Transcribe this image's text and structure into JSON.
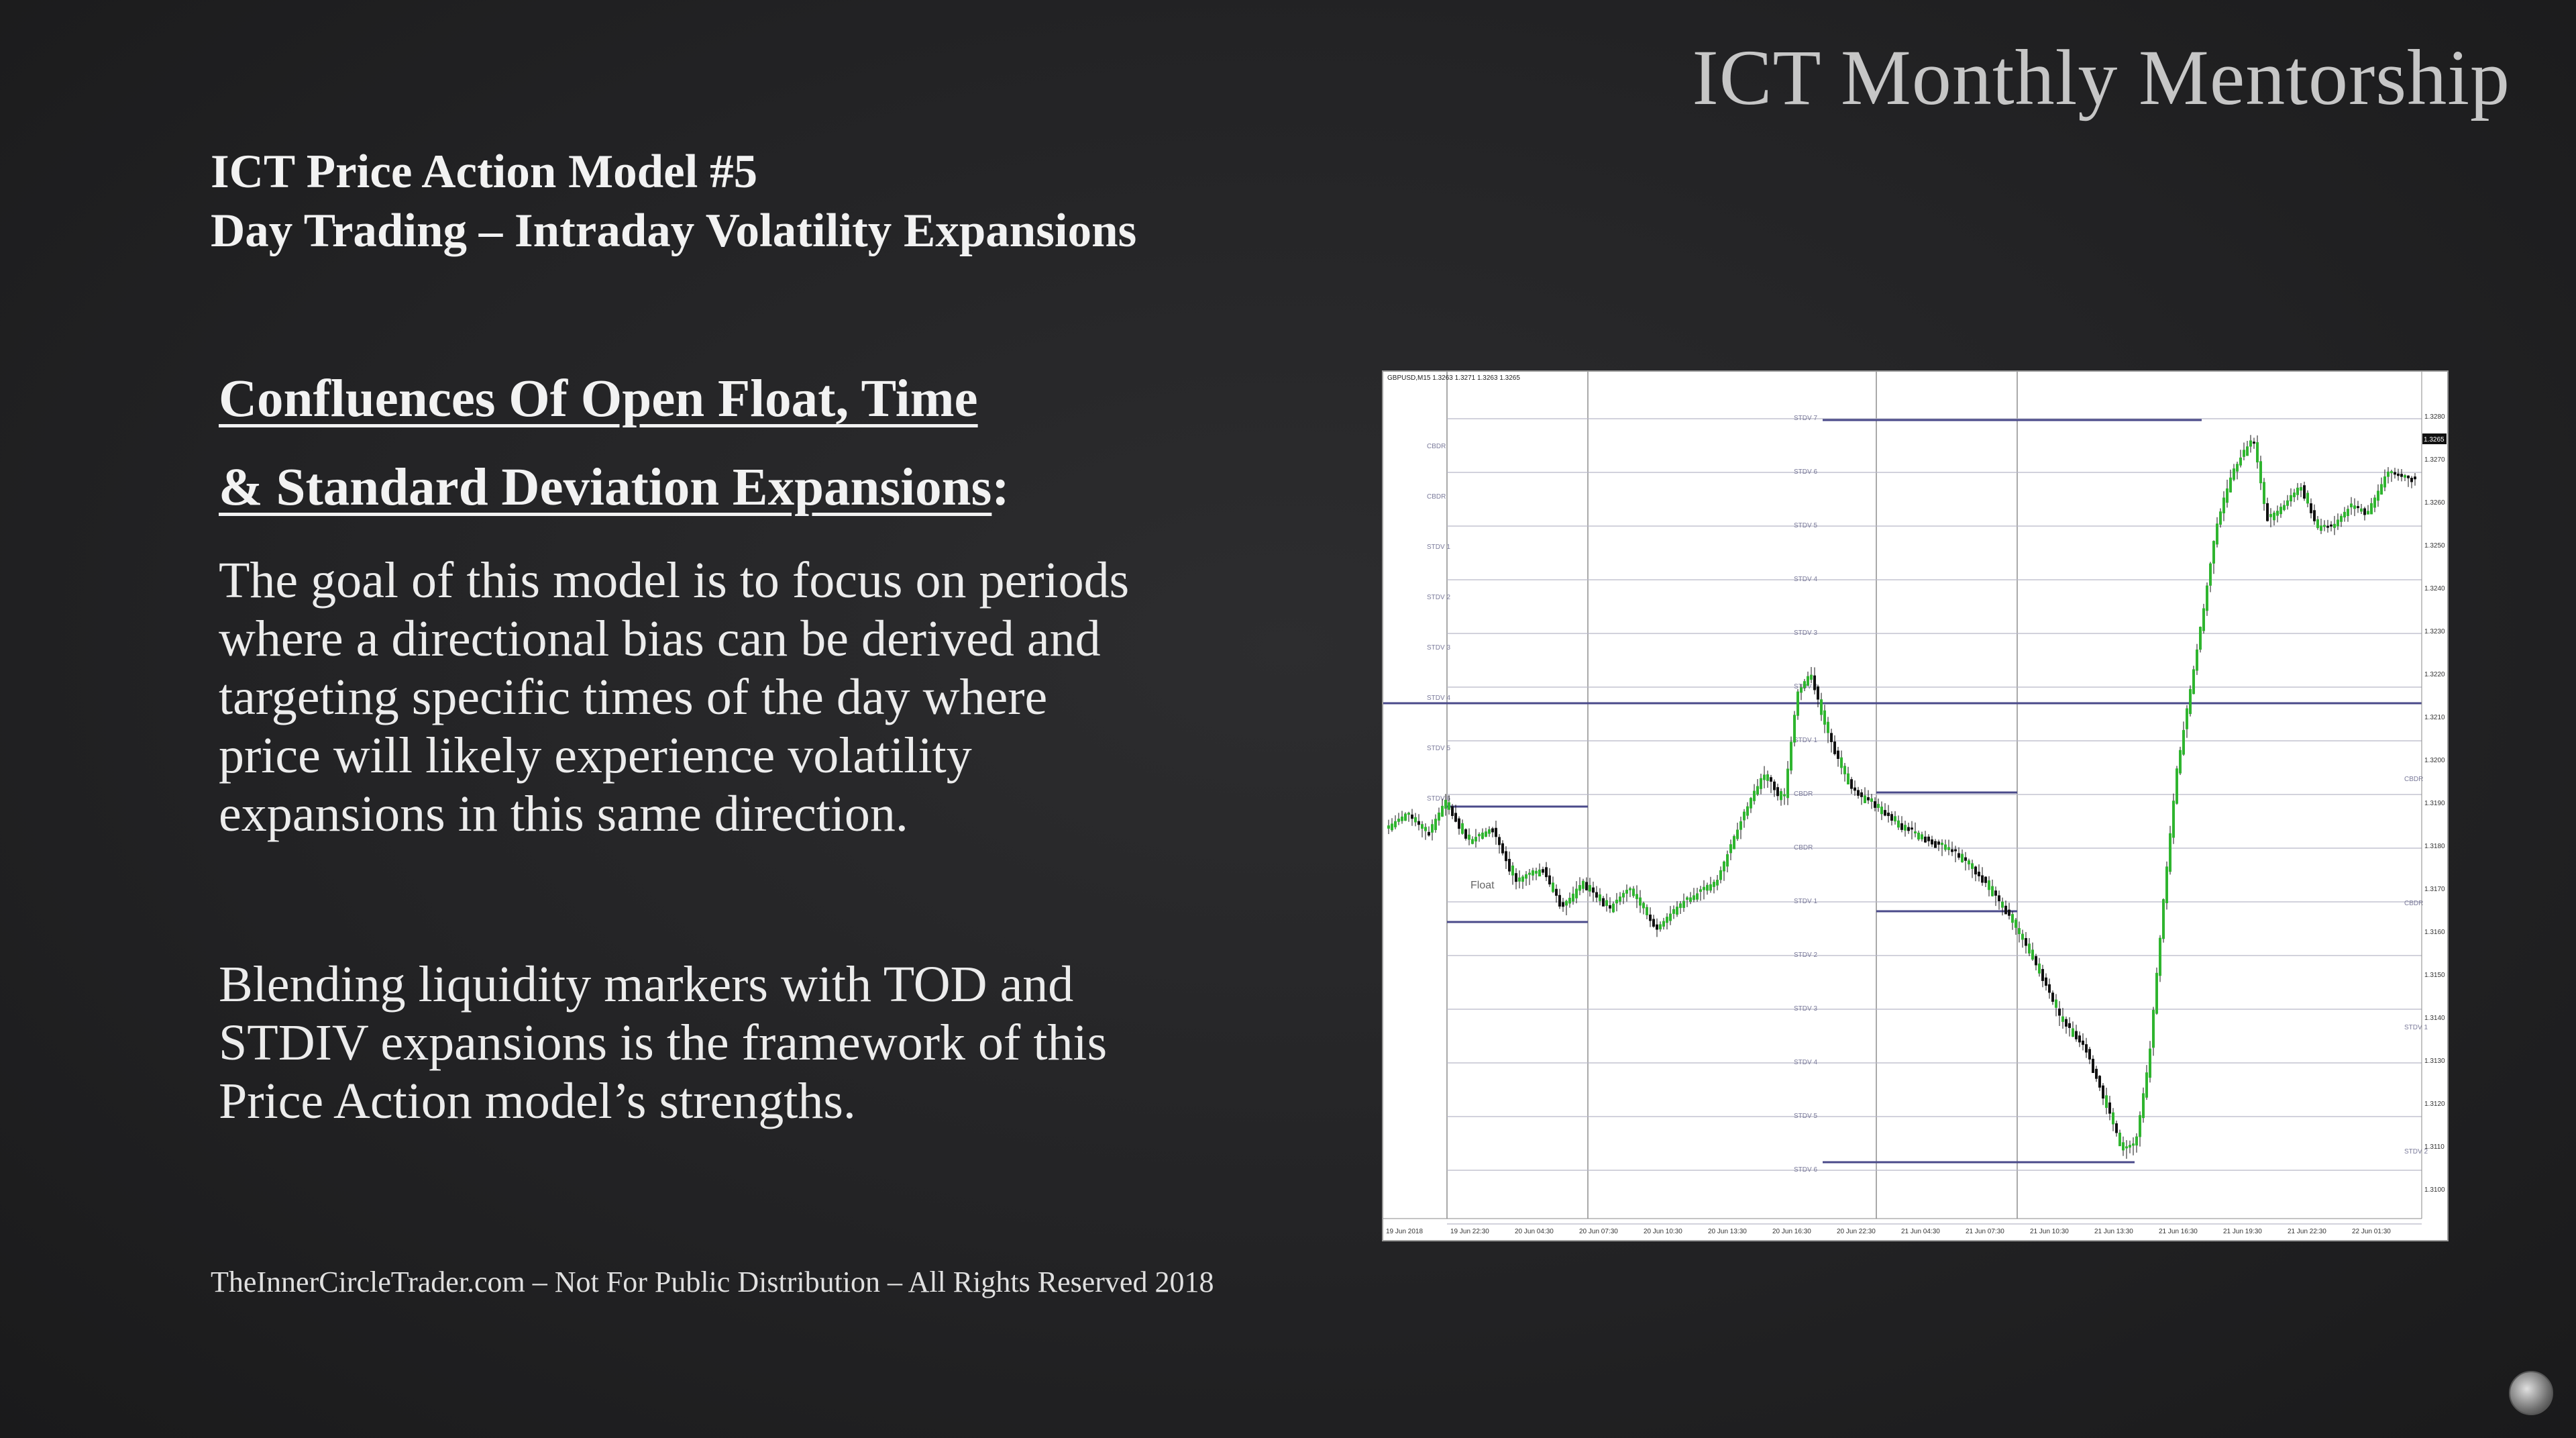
{
  "brand": "ICT Monthly Mentorship",
  "title": {
    "line1": "ICT Price Action Model #5",
    "line2": "Day Trading – Intraday Volatility Expansions"
  },
  "heading": {
    "line1": "Confluences Of Open Float, Time",
    "line2": " & Standard Deviation Expansions",
    "suffix": ":"
  },
  "paragraphs": {
    "p1": [
      "The goal of this model is to focus on periods",
      "where a directional bias can be derived and",
      "targeting specific times of the day where",
      "price will likely experience volatility",
      "expansions in this same direction."
    ],
    "p2": [
      "Blending liquidity markers with TOD and",
      "STDIV expansions is the framework of this",
      "Price Action model’s strengths."
    ]
  },
  "footer": "TheInnerCircleTrader.com – Not For Public Distribution – All Rights Reserved 2018",
  "chart": {
    "symbol": "GBPUSD,M15  1.3263 1.3271 1.3263 1.3265",
    "float_label": "Float",
    "stdv_labels": [
      "STDV 7",
      "STDV 6",
      "STDV 5",
      "STDV 4",
      "STDV 3",
      "STDV 2",
      "STDV 1",
      "CBDR",
      "CBDR",
      "STDV 1",
      "STDV 2",
      "STDV 3",
      "STDV 4",
      "STDV 5",
      "STDV 6"
    ],
    "left_labels": [
      "CBDR",
      "CBDR",
      "STDV 1",
      "STDV 2",
      "STDV 3",
      "STDV 4",
      "STDV 5",
      "STDV 6"
    ],
    "right_labels": [
      "CBDR",
      "CBDR",
      "STDV 1",
      "STDV 2"
    ],
    "price_labels": [
      "1.3280",
      "1.3270",
      "1.3260",
      "1.3250",
      "1.3240",
      "1.3230",
      "1.3220",
      "1.3210",
      "1.3200",
      "1.3190",
      "1.3180",
      "1.3170",
      "1.3160",
      "1.3150",
      "1.3140",
      "1.3130",
      "1.3120",
      "1.3110",
      "1.3100"
    ],
    "current_price": "1.3265",
    "time_labels": [
      "19 Jun 2018",
      "19 Jun 22:30",
      "20 Jun 04:30",
      "20 Jun 07:30",
      "20 Jun 10:30",
      "20 Jun 13:30",
      "20 Jun 16:30",
      "20 Jun 22:30",
      "21 Jun 04:30",
      "21 Jun 07:30",
      "21 Jun 10:30",
      "21 Jun 13:30",
      "21 Jun 16:30",
      "21 Jun 19:30",
      "21 Jun 22:30",
      "22 Jun 01:30"
    ],
    "colors": {
      "bull": "#2fb52f",
      "bear": "#111111",
      "level": "#4a4a8a",
      "grid": "#b8b8c8"
    }
  }
}
